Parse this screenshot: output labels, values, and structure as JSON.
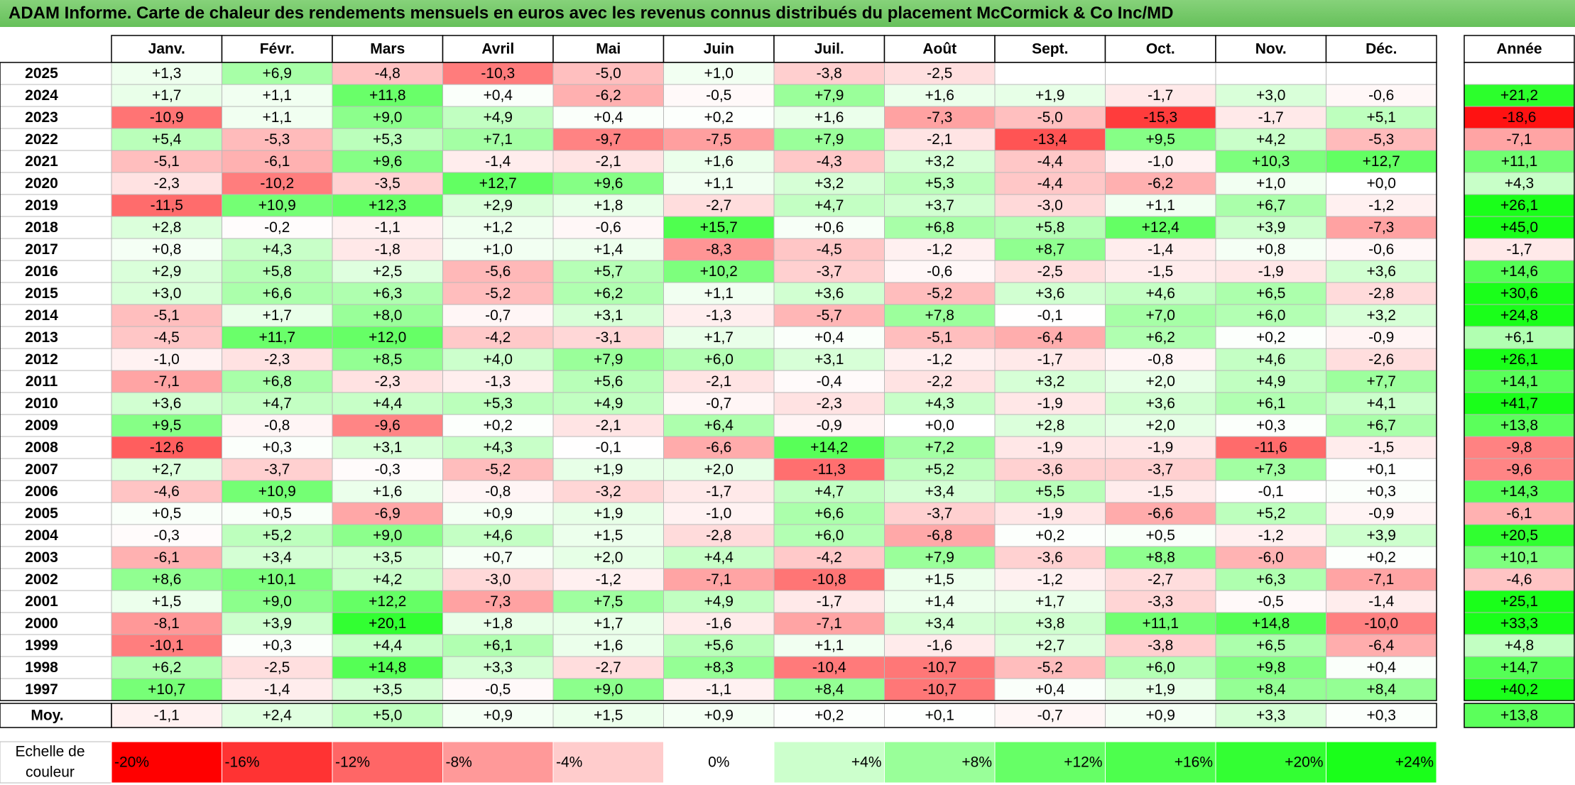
{
  "title": "ADAM Informe. Carte de chaleur des rendements mensuels en euros avec les revenus connus distribués du placement McCormick & Co Inc/MD",
  "chart_data": {
    "type": "heatmap",
    "columns": [
      "Janv.",
      "Févr.",
      "Mars",
      "Avril",
      "Mai",
      "Juin",
      "Juil.",
      "Août",
      "Sept.",
      "Oct.",
      "Nov.",
      "Déc."
    ],
    "year_column_label": "Année",
    "rows": [
      {
        "year": "2025",
        "values": [
          "+1,3",
          "+6,9",
          "-4,8",
          "-10,3",
          "-5,0",
          "+1,0",
          "-3,8",
          "-2,5",
          "",
          "",
          "",
          ""
        ],
        "annual": ""
      },
      {
        "year": "2024",
        "values": [
          "+1,7",
          "+1,1",
          "+11,8",
          "+0,4",
          "-6,2",
          "-0,5",
          "+7,9",
          "+1,6",
          "+1,9",
          "-1,7",
          "+3,0",
          "-0,6"
        ],
        "annual": "+21,2"
      },
      {
        "year": "2023",
        "values": [
          "-10,9",
          "+1,1",
          "+9,0",
          "+4,9",
          "+0,4",
          "+0,2",
          "+1,6",
          "-7,3",
          "-5,0",
          "-15,3",
          "-1,7",
          "+5,1"
        ],
        "annual": "-18,6"
      },
      {
        "year": "2022",
        "values": [
          "+5,4",
          "-5,3",
          "+5,3",
          "+7,1",
          "-9,7",
          "-7,5",
          "+7,9",
          "-2,1",
          "-13,4",
          "+9,5",
          "+4,2",
          "-5,3"
        ],
        "annual": "-7,1"
      },
      {
        "year": "2021",
        "values": [
          "-5,1",
          "-6,1",
          "+9,6",
          "-1,4",
          "-2,1",
          "+1,6",
          "-4,3",
          "+3,2",
          "-4,4",
          "-1,0",
          "+10,3",
          "+12,7"
        ],
        "annual": "+11,1"
      },
      {
        "year": "2020",
        "values": [
          "-2,3",
          "-10,2",
          "-3,5",
          "+12,7",
          "+9,6",
          "+1,1",
          "+3,2",
          "+5,3",
          "-4,4",
          "-6,2",
          "+1,0",
          "+0,0"
        ],
        "annual": "+4,3"
      },
      {
        "year": "2019",
        "values": [
          "-11,5",
          "+10,9",
          "+12,3",
          "+2,9",
          "+1,8",
          "-2,7",
          "+4,7",
          "+3,7",
          "-3,0",
          "+1,1",
          "+6,7",
          "-1,2"
        ],
        "annual": "+26,1"
      },
      {
        "year": "2018",
        "values": [
          "+2,8",
          "-0,2",
          "-1,1",
          "+1,2",
          "-0,6",
          "+15,7",
          "+0,6",
          "+6,8",
          "+5,8",
          "+12,4",
          "+3,9",
          "-7,3"
        ],
        "annual": "+45,0"
      },
      {
        "year": "2017",
        "values": [
          "+0,8",
          "+4,3",
          "-1,8",
          "+1,0",
          "+1,4",
          "-8,3",
          "-4,5",
          "-1,2",
          "+8,7",
          "-1,4",
          "+0,8",
          "-0,6"
        ],
        "annual": "-1,7"
      },
      {
        "year": "2016",
        "values": [
          "+2,9",
          "+5,8",
          "+2,5",
          "-5,6",
          "+5,7",
          "+10,2",
          "-3,7",
          "-0,6",
          "-2,5",
          "-1,5",
          "-1,9",
          "+3,6"
        ],
        "annual": "+14,6"
      },
      {
        "year": "2015",
        "values": [
          "+3,0",
          "+6,6",
          "+6,3",
          "-5,2",
          "+6,2",
          "+1,1",
          "+3,6",
          "-5,2",
          "+3,6",
          "+4,6",
          "+6,5",
          "-2,8"
        ],
        "annual": "+30,6"
      },
      {
        "year": "2014",
        "values": [
          "-5,1",
          "+1,7",
          "+8,0",
          "-0,7",
          "+3,1",
          "-1,3",
          "-5,7",
          "+7,8",
          "-0,1",
          "+7,0",
          "+6,0",
          "+3,2"
        ],
        "annual": "+24,8"
      },
      {
        "year": "2013",
        "values": [
          "-4,5",
          "+11,7",
          "+12,0",
          "-4,2",
          "-3,1",
          "+1,7",
          "+0,4",
          "-5,1",
          "-6,4",
          "+6,2",
          "+0,2",
          "-0,9"
        ],
        "annual": "+6,1"
      },
      {
        "year": "2012",
        "values": [
          "-1,0",
          "-2,3",
          "+8,5",
          "+4,0",
          "+7,9",
          "+6,0",
          "+3,1",
          "-1,2",
          "-1,7",
          "-0,8",
          "+4,6",
          "-2,6"
        ],
        "annual": "+26,1"
      },
      {
        "year": "2011",
        "values": [
          "-7,1",
          "+6,8",
          "-2,3",
          "-1,3",
          "+5,6",
          "-2,1",
          "-0,4",
          "-2,2",
          "+3,2",
          "+2,0",
          "+4,9",
          "+7,7"
        ],
        "annual": "+14,1"
      },
      {
        "year": "2010",
        "values": [
          "+3,6",
          "+4,7",
          "+4,4",
          "+5,3",
          "+4,9",
          "-0,7",
          "-2,3",
          "+4,3",
          "-1,9",
          "+3,6",
          "+6,1",
          "+4,1"
        ],
        "annual": "+41,7"
      },
      {
        "year": "2009",
        "values": [
          "+9,5",
          "-0,8",
          "-9,6",
          "+0,2",
          "-2,1",
          "+6,4",
          "-0,9",
          "+0,0",
          "+2,8",
          "+2,0",
          "+0,3",
          "+6,7"
        ],
        "annual": "+13,8"
      },
      {
        "year": "2008",
        "values": [
          "-12,6",
          "+0,3",
          "+3,1",
          "+4,3",
          "-0,1",
          "-6,6",
          "+14,2",
          "+7,2",
          "-1,9",
          "-1,9",
          "-11,6",
          "-1,5"
        ],
        "annual": "-9,8"
      },
      {
        "year": "2007",
        "values": [
          "+2,7",
          "-3,7",
          "-0,3",
          "-5,2",
          "+1,9",
          "+2,0",
          "-11,3",
          "+5,2",
          "-3,6",
          "-3,7",
          "+7,3",
          "+0,1"
        ],
        "annual": "-9,6"
      },
      {
        "year": "2006",
        "values": [
          "-4,6",
          "+10,9",
          "+1,6",
          "-0,8",
          "-3,2",
          "-1,7",
          "+4,7",
          "+3,4",
          "+5,5",
          "-1,5",
          "-0,1",
          "+0,3"
        ],
        "annual": "+14,3"
      },
      {
        "year": "2005",
        "values": [
          "+0,5",
          "+0,5",
          "-6,9",
          "+0,9",
          "+1,9",
          "-1,0",
          "+6,6",
          "-3,7",
          "-1,9",
          "-6,6",
          "+5,2",
          "-0,9"
        ],
        "annual": "-6,1"
      },
      {
        "year": "2004",
        "values": [
          "-0,3",
          "+5,2",
          "+9,0",
          "+4,6",
          "+1,5",
          "-2,8",
          "+6,0",
          "-6,8",
          "+0,2",
          "+0,5",
          "-1,2",
          "+3,9"
        ],
        "annual": "+20,5"
      },
      {
        "year": "2003",
        "values": [
          "-6,1",
          "+3,4",
          "+3,5",
          "+0,7",
          "+2,0",
          "+4,4",
          "-4,2",
          "+7,9",
          "-3,6",
          "+8,8",
          "-6,0",
          "+0,2"
        ],
        "annual": "+10,1"
      },
      {
        "year": "2002",
        "values": [
          "+8,6",
          "+10,1",
          "+4,2",
          "-3,0",
          "-1,2",
          "-7,1",
          "-10,8",
          "+1,5",
          "-1,2",
          "-2,7",
          "+6,3",
          "-7,1"
        ],
        "annual": "-4,6"
      },
      {
        "year": "2001",
        "values": [
          "+1,5",
          "+9,0",
          "+12,2",
          "-7,3",
          "+7,5",
          "+4,9",
          "-1,7",
          "+1,4",
          "+1,7",
          "-3,3",
          "-0,5",
          "-1,4"
        ],
        "annual": "+25,1"
      },
      {
        "year": "2000",
        "values": [
          "-8,1",
          "+3,9",
          "+20,1",
          "+1,8",
          "+1,7",
          "-1,6",
          "-7,1",
          "+3,4",
          "+3,8",
          "+11,1",
          "+14,8",
          "-10,0"
        ],
        "annual": "+33,3"
      },
      {
        "year": "1999",
        "values": [
          "-10,1",
          "+0,3",
          "+4,4",
          "+6,1",
          "+1,6",
          "+5,6",
          "+1,1",
          "-1,6",
          "+2,7",
          "-3,8",
          "+6,5",
          "-6,4"
        ],
        "annual": "+4,8"
      },
      {
        "year": "1998",
        "values": [
          "+6,2",
          "-2,5",
          "+14,8",
          "+3,3",
          "-2,7",
          "+8,3",
          "-10,4",
          "-10,7",
          "-5,2",
          "+6,0",
          "+9,8",
          "+0,4"
        ],
        "annual": "+14,7"
      },
      {
        "year": "1997",
        "values": [
          "+10,7",
          "-1,4",
          "+3,5",
          "-0,5",
          "+9,0",
          "-1,1",
          "+8,4",
          "-10,7",
          "+0,4",
          "+1,9",
          "+8,4",
          "+8,4"
        ],
        "annual": "+40,2"
      }
    ],
    "average": {
      "label": "Moy.",
      "values": [
        "-1,1",
        "+2,4",
        "+5,0",
        "+0,9",
        "+1,5",
        "+0,9",
        "+0,2",
        "+0,1",
        "-0,7",
        "+0,9",
        "+3,3",
        "+0,3"
      ],
      "annual": "+13,8"
    },
    "color_scale": {
      "label_line1": "Echelle de",
      "label_line2": "couleur",
      "stops": [
        {
          "label": "-20%",
          "value": -20,
          "color": "#ff0000"
        },
        {
          "label": "-16%",
          "value": -16,
          "color": "#ff3333"
        },
        {
          "label": "-12%",
          "value": -12,
          "color": "#ff6666"
        },
        {
          "label": "-8%",
          "value": -8,
          "color": "#ff9999"
        },
        {
          "label": "-4%",
          "value": -4,
          "color": "#ffcccc"
        },
        {
          "label": "0%",
          "value": 0,
          "color": "#ffffff"
        },
        {
          "label": "+4%",
          "value": 4,
          "color": "#ccffcc"
        },
        {
          "label": "+8%",
          "value": 8,
          "color": "#99ff99"
        },
        {
          "label": "+12%",
          "value": 12,
          "color": "#66ff66"
        },
        {
          "label": "+16%",
          "value": 16,
          "color": "#4dff4d"
        },
        {
          "label": "+20%",
          "value": 20,
          "color": "#33ff33"
        },
        {
          "label": "+24%",
          "value": 24,
          "color": "#1aff1a"
        }
      ]
    }
  }
}
